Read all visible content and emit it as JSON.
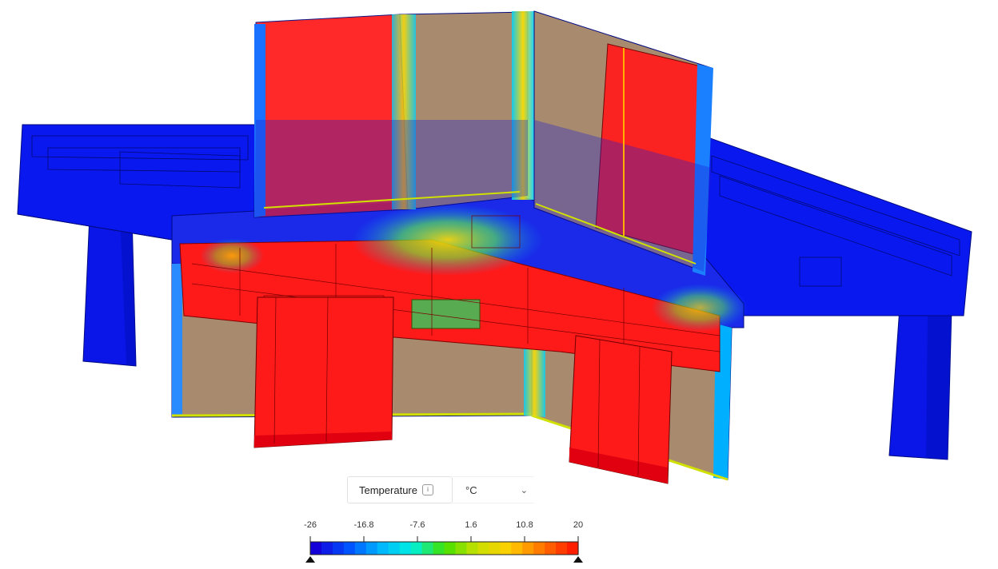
{
  "legend": {
    "quantity_label": "Temperature",
    "info_icon": "info-icon",
    "unit_label": "°C",
    "dropdown_icon": "chevron-down-icon",
    "ticks": [
      "-26",
      "-16.8",
      "-7.6",
      "1.6",
      "10.8",
      "20"
    ],
    "range": [
      -26,
      20
    ],
    "colormap": [
      "#1400d8",
      "#0050ff",
      "#00b4ff",
      "#00f0e0",
      "#40e000",
      "#c8e000",
      "#ffd000",
      "#ff7800",
      "#ff1e00"
    ]
  },
  "colors": {
    "cold": "#0a14e6",
    "hot": "#ff1616",
    "interior": "#a88a6e"
  }
}
